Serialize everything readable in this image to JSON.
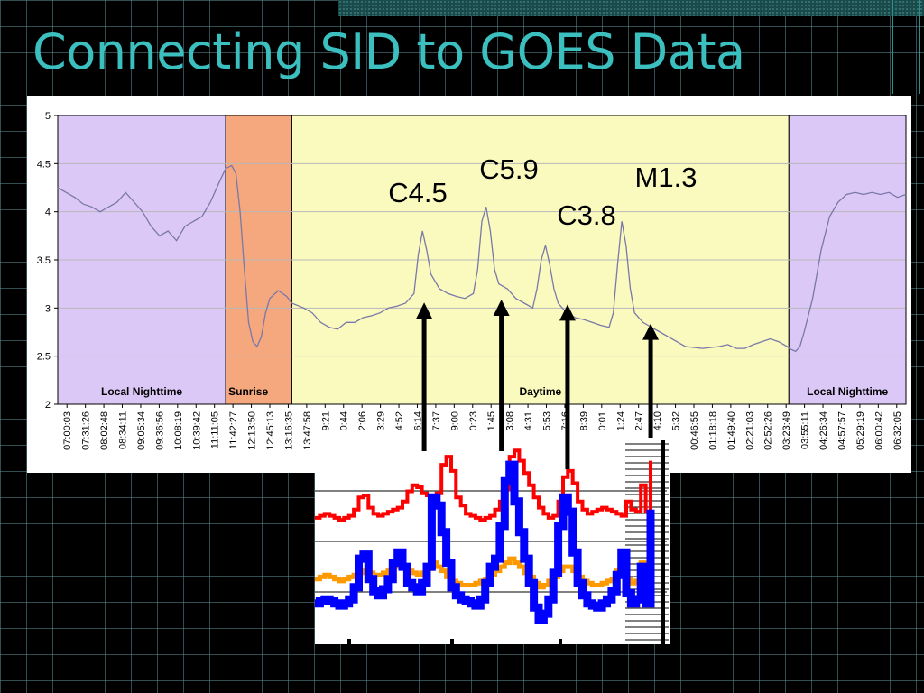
{
  "slide": {
    "title": "Connecting SID to GOES Data"
  },
  "colors": {
    "night": "#dcc8f6",
    "sunrise": "#f5a77e",
    "day": "#fafabf",
    "sid_line": "#7a78a8",
    "goes_long": "#ff0000",
    "goes_short": "#0000ff",
    "goes_short_alt": "#ff9900",
    "arrow": "#000000",
    "title": "#3bbfbf"
  },
  "chart_data": [
    {
      "type": "line",
      "title": "",
      "xlabel": "",
      "ylabel": "",
      "ylim": [
        2,
        5
      ],
      "yticks": [
        "2",
        "2.5",
        "3",
        "3.5",
        "4",
        "4.5",
        "5"
      ],
      "grid": true,
      "x_labels": [
        "07:00:03",
        "07:31:26",
        "08:02:48",
        "08:34:11",
        "09:05:34",
        "09:36:56",
        "10:08:19",
        "10:39:42",
        "11:11:05",
        "11:42:27",
        "12:13:50",
        "12:45:13",
        "13:16:35",
        "13:47:58",
        "9:21",
        "0:44",
        "2:06",
        "3:29",
        "4:52",
        "6:14",
        "7:37",
        "9:00",
        "0:23",
        "1:45",
        "3:08",
        "4:31",
        "5:53",
        "7:16",
        "8:39",
        "0:01",
        "1:24",
        "2:47",
        "4:10",
        "5:32",
        "00:46:55",
        "01:18:18",
        "01:49:40",
        "02:21:03",
        "02:52:26",
        "03:23:49",
        "03:55:11",
        "04:26:34",
        "04:57:57",
        "05:29:19",
        "06:00:42",
        "06:32:05"
      ],
      "regions": [
        {
          "label": "Local Nighttime",
          "from": 0,
          "to": 0.198
        },
        {
          "label": "Sunrise",
          "from": 0.198,
          "to": 0.276
        },
        {
          "label": "Daytime",
          "from": 0.276,
          "to": 0.862
        },
        {
          "label": "Local Nighttime",
          "from": 0.862,
          "to": 1
        }
      ],
      "series": [
        {
          "points": [
            [
              0,
              4.25
            ],
            [
              0.01,
              4.2
            ],
            [
              0.02,
              4.15
            ],
            [
              0.03,
              4.08
            ],
            [
              0.04,
              4.05
            ],
            [
              0.05,
              4.0
            ],
            [
              0.06,
              4.05
            ],
            [
              0.07,
              4.1
            ],
            [
              0.08,
              4.2
            ],
            [
              0.09,
              4.1
            ],
            [
              0.1,
              4.0
            ],
            [
              0.11,
              3.85
            ],
            [
              0.12,
              3.75
            ],
            [
              0.13,
              3.8
            ],
            [
              0.14,
              3.7
            ],
            [
              0.15,
              3.85
            ],
            [
              0.16,
              3.9
            ],
            [
              0.17,
              3.95
            ],
            [
              0.18,
              4.1
            ],
            [
              0.19,
              4.3
            ],
            [
              0.198,
              4.45
            ],
            [
              0.205,
              4.48
            ],
            [
              0.21,
              4.4
            ],
            [
              0.215,
              4.0
            ],
            [
              0.22,
              3.4
            ],
            [
              0.225,
              2.85
            ],
            [
              0.23,
              2.65
            ],
            [
              0.235,
              2.6
            ],
            [
              0.24,
              2.7
            ],
            [
              0.245,
              2.95
            ],
            [
              0.25,
              3.1
            ],
            [
              0.26,
              3.18
            ],
            [
              0.27,
              3.12
            ],
            [
              0.276,
              3.05
            ],
            [
              0.29,
              3.0
            ],
            [
              0.3,
              2.95
            ],
            [
              0.31,
              2.85
            ],
            [
              0.32,
              2.8
            ],
            [
              0.33,
              2.78
            ],
            [
              0.34,
              2.85
            ],
            [
              0.35,
              2.85
            ],
            [
              0.36,
              2.9
            ],
            [
              0.37,
              2.92
            ],
            [
              0.38,
              2.95
            ],
            [
              0.39,
              3.0
            ],
            [
              0.4,
              3.02
            ],
            [
              0.41,
              3.05
            ],
            [
              0.42,
              3.15
            ],
            [
              0.425,
              3.55
            ],
            [
              0.43,
              3.8
            ],
            [
              0.435,
              3.6
            ],
            [
              0.44,
              3.35
            ],
            [
              0.45,
              3.2
            ],
            [
              0.46,
              3.15
            ],
            [
              0.47,
              3.12
            ],
            [
              0.48,
              3.1
            ],
            [
              0.49,
              3.15
            ],
            [
              0.495,
              3.4
            ],
            [
              0.5,
              3.9
            ],
            [
              0.505,
              4.05
            ],
            [
              0.51,
              3.8
            ],
            [
              0.515,
              3.4
            ],
            [
              0.52,
              3.25
            ],
            [
              0.53,
              3.2
            ],
            [
              0.54,
              3.1
            ],
            [
              0.55,
              3.05
            ],
            [
              0.56,
              3.0
            ],
            [
              0.565,
              3.2
            ],
            [
              0.57,
              3.5
            ],
            [
              0.575,
              3.65
            ],
            [
              0.58,
              3.45
            ],
            [
              0.585,
              3.2
            ],
            [
              0.59,
              3.05
            ],
            [
              0.6,
              2.95
            ],
            [
              0.61,
              2.9
            ],
            [
              0.62,
              2.88
            ],
            [
              0.63,
              2.85
            ],
            [
              0.64,
              2.82
            ],
            [
              0.65,
              2.8
            ],
            [
              0.655,
              2.95
            ],
            [
              0.66,
              3.45
            ],
            [
              0.665,
              3.9
            ],
            [
              0.67,
              3.65
            ],
            [
              0.675,
              3.2
            ],
            [
              0.68,
              2.95
            ],
            [
              0.69,
              2.85
            ],
            [
              0.7,
              2.8
            ],
            [
              0.71,
              2.75
            ],
            [
              0.72,
              2.7
            ],
            [
              0.73,
              2.65
            ],
            [
              0.74,
              2.6
            ],
            [
              0.76,
              2.58
            ],
            [
              0.78,
              2.6
            ],
            [
              0.79,
              2.62
            ],
            [
              0.8,
              2.58
            ],
            [
              0.81,
              2.58
            ],
            [
              0.82,
              2.62
            ],
            [
              0.83,
              2.65
            ],
            [
              0.84,
              2.68
            ],
            [
              0.85,
              2.65
            ],
            [
              0.86,
              2.6
            ],
            [
              0.862,
              2.58
            ],
            [
              0.87,
              2.55
            ],
            [
              0.875,
              2.6
            ],
            [
              0.88,
              2.75
            ],
            [
              0.89,
              3.1
            ],
            [
              0.9,
              3.6
            ],
            [
              0.91,
              3.95
            ],
            [
              0.92,
              4.1
            ],
            [
              0.93,
              4.18
            ],
            [
              0.94,
              4.2
            ],
            [
              0.95,
              4.18
            ],
            [
              0.96,
              4.2
            ],
            [
              0.97,
              4.18
            ],
            [
              0.98,
              4.2
            ],
            [
              0.99,
              4.15
            ],
            [
              1.0,
              4.18
            ]
          ]
        }
      ],
      "annotations": [
        {
          "text": "C4.5",
          "x": 0.432,
          "y": 3.02
        },
        {
          "text": "C5.9",
          "x": 0.523,
          "y": 3.05
        },
        {
          "text": "C3.8",
          "x": 0.601,
          "y": 3.0
        },
        {
          "text": "M1.3",
          "x": 0.699,
          "y": 2.8
        }
      ]
    },
    {
      "type": "line",
      "title": "",
      "series": [
        {
          "color_key": "goes_long",
          "values": [
            0.62,
            0.63,
            0.64,
            0.63,
            0.62,
            0.61,
            0.62,
            0.63,
            0.66,
            0.72,
            0.73,
            0.67,
            0.64,
            0.63,
            0.64,
            0.65,
            0.66,
            0.67,
            0.7,
            0.75,
            0.78,
            0.77,
            0.74,
            0.73,
            0.72,
            0.74,
            0.88,
            0.92,
            0.85,
            0.72,
            0.68,
            0.64,
            0.63,
            0.62,
            0.61,
            0.62,
            0.63,
            0.66,
            0.7,
            0.76,
            0.92,
            0.95,
            0.9,
            0.84,
            0.78,
            0.72,
            0.67,
            0.64,
            0.62,
            0.63,
            0.7,
            0.82,
            0.85,
            0.79,
            0.7,
            0.66,
            0.64,
            0.65,
            0.66,
            0.67,
            0.66,
            0.65,
            0.64,
            0.63,
            0.7,
            0.66,
            0.65,
            0.78,
            0.65,
            0.9
          ]
        },
        {
          "color_key": "goes_short",
          "values": [
            0.2,
            0.21,
            0.22,
            0.21,
            0.2,
            0.19,
            0.2,
            0.22,
            0.28,
            0.42,
            0.44,
            0.32,
            0.26,
            0.24,
            0.27,
            0.32,
            0.4,
            0.45,
            0.38,
            0.3,
            0.28,
            0.26,
            0.3,
            0.38,
            0.72,
            0.68,
            0.55,
            0.4,
            0.28,
            0.24,
            0.22,
            0.21,
            0.2,
            0.19,
            0.22,
            0.3,
            0.38,
            0.42,
            0.58,
            0.8,
            0.88,
            0.7,
            0.55,
            0.42,
            0.3,
            0.18,
            0.12,
            0.15,
            0.22,
            0.35,
            0.58,
            0.72,
            0.65,
            0.45,
            0.3,
            0.24,
            0.2,
            0.19,
            0.18,
            0.2,
            0.22,
            0.26,
            0.34,
            0.45,
            0.25,
            0.2,
            0.22,
            0.38,
            0.2,
            0.66
          ]
        },
        {
          "color_key": "goes_short_alt",
          "values": [
            0.32,
            0.33,
            0.34,
            0.33,
            0.32,
            0.31,
            0.32,
            0.33,
            0.34,
            0.35,
            0.36,
            0.35,
            0.34,
            0.34,
            0.35,
            0.36,
            0.38,
            0.4,
            0.38,
            0.36,
            0.35,
            0.34,
            0.35,
            0.37,
            0.4,
            0.38,
            0.36,
            0.33,
            0.31,
            0.3,
            0.29,
            0.29,
            0.29,
            0.3,
            0.31,
            0.32,
            0.34,
            0.36,
            0.38,
            0.4,
            0.42,
            0.4,
            0.38,
            0.35,
            0.33,
            0.3,
            0.28,
            0.29,
            0.31,
            0.33,
            0.36,
            0.38,
            0.38,
            0.36,
            0.33,
            0.31,
            0.3,
            0.29,
            0.29,
            0.3,
            0.31,
            0.32,
            0.36,
            0.4,
            0.32,
            0.3,
            0.31,
            0.4,
            0.31,
            0.45
          ]
        }
      ]
    }
  ]
}
